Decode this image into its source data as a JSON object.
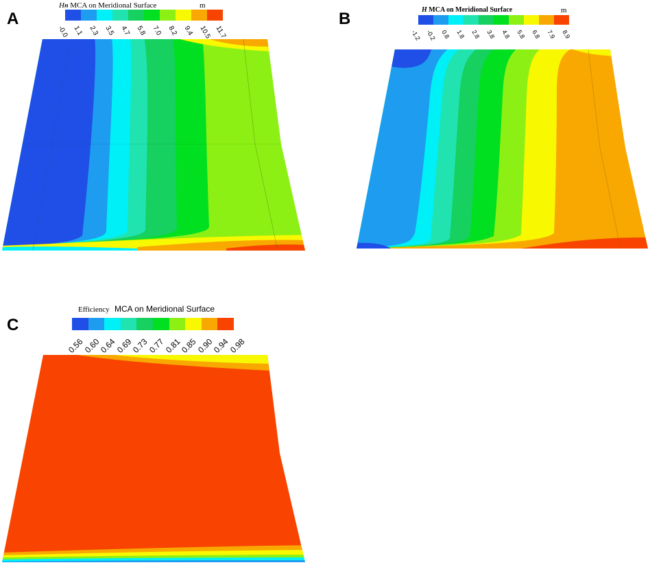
{
  "palette": [
    "#1f4fe6",
    "#1e9cf0",
    "#00f0f8",
    "#20e3b0",
    "#16d060",
    "#00e020",
    "#8cf014",
    "#f8f800",
    "#f8a800",
    "#f84400"
  ],
  "panels": {
    "A": {
      "letter": "A",
      "title_var": "Hᵰ",
      "title_rest": "MCA on Meridional  Surface",
      "unit": "m",
      "ticks": [
        "-0.0",
        "1.1",
        "2.3",
        "3.5",
        "4.7",
        "5.8",
        "7.0",
        "8.2",
        "9.4",
        "10.5",
        "11.7"
      ]
    },
    "B": {
      "letter": "B",
      "title_var": "H",
      "title_rest": "MCA on Meridional Surface",
      "unit": "m",
      "ticks": [
        "-1.2",
        "-0.2",
        "0.8",
        "1.8",
        "2.8",
        "3.8",
        "4.8",
        "5.8",
        "6.8",
        "7.9",
        "8.9"
      ]
    },
    "C": {
      "letter": "C",
      "title_var": "Efficiency",
      "title_rest": "MCA on Meridional Surface",
      "ticks": [
        "0.56",
        "0.60",
        "0.64",
        "0.69",
        "0.73",
        "0.77",
        "0.81",
        "0.85",
        "0.90",
        "0.94",
        "0.98"
      ]
    }
  }
}
